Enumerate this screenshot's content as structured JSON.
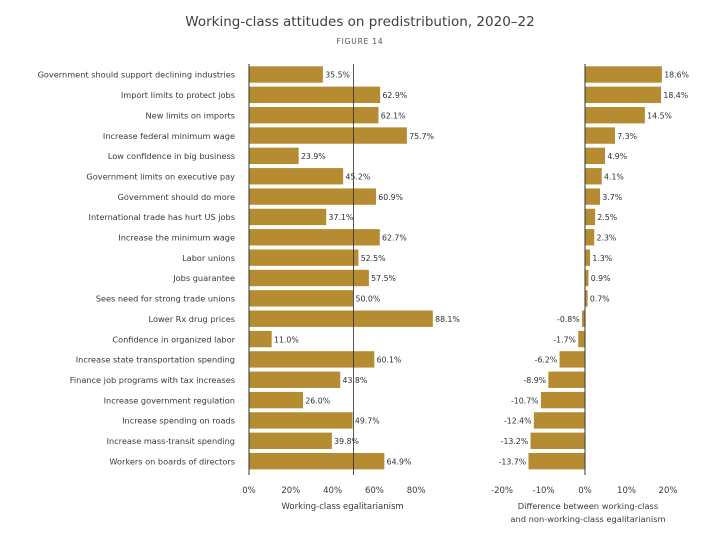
{
  "title": "Working-class attitudes on predistribution, 2020–22",
  "figure_label": "FIGURE 14",
  "colors": {
    "bar": "#b58c32",
    "bar_stroke": "#ffffff",
    "axis": "#333333",
    "grid": "#bfbfbf",
    "text": "#3a3a3a"
  },
  "chart_data": [
    {
      "type": "bar",
      "orientation": "horizontal",
      "xlabel": "Working-class egalitarianism",
      "xlim": [
        0,
        80
      ],
      "ticks": [
        0,
        20,
        40,
        60,
        80
      ],
      "tick_labels": [
        "0%",
        "20%",
        "40%",
        "60%",
        "80%"
      ],
      "reference_line": 50,
      "categories": [
        "Government should support declining industries",
        "Import limits to protect jobs",
        "New limits on imports",
        "Increase federal minimum wage",
        "Low confidence in big business",
        "Government limits on executive pay",
        "Government should do more",
        "International trade has hurt US jobs",
        "Increase the minimum wage",
        "Labor unions",
        "Jobs guarantee",
        "Sees need for strong trade unions",
        "Lower Rx drug prices",
        "Confidence in organized labor",
        "Increase state transportation spending",
        "Finance job programs with tax increases",
        "Increase government regulation",
        "Increase spending on roads",
        "Increase mass-transit spending",
        "Workers on boards of directors"
      ],
      "values": [
        35.5,
        62.9,
        62.1,
        75.7,
        23.9,
        45.2,
        60.9,
        37.1,
        62.7,
        52.5,
        57.5,
        50.0,
        88.1,
        11.0,
        60.1,
        43.8,
        26.0,
        49.7,
        39.8,
        64.9
      ],
      "value_labels": [
        "35.5%",
        "62.9%",
        "62.1%",
        "75.7%",
        "23.9%",
        "45.2%",
        "60.9%",
        "37.1%",
        "62.7%",
        "52.5%",
        "57.5%",
        "50.0%",
        "88.1%",
        "11.0%",
        "60.1%",
        "43.8%",
        "26.0%",
        "49.7%",
        "39.8%",
        "64.9%"
      ]
    },
    {
      "type": "bar",
      "orientation": "horizontal",
      "xlabel_lines": [
        "Difference between working-class",
        "and non-working-class egalitarianism"
      ],
      "xlim": [
        -20,
        20
      ],
      "ticks": [
        -20,
        -10,
        0,
        10,
        20
      ],
      "tick_labels": [
        "-20%",
        "-10%",
        "0%",
        "10%",
        "20%"
      ],
      "values": [
        18.6,
        18.4,
        14.5,
        7.3,
        4.9,
        4.1,
        3.7,
        2.5,
        2.3,
        1.3,
        0.9,
        0.7,
        -0.8,
        -1.7,
        -6.2,
        -8.9,
        -10.7,
        -12.4,
        -13.2,
        -13.7
      ],
      "value_labels": [
        "18.6%",
        "18.4%",
        "14.5%",
        "7.3%",
        "4.9%",
        "4.1%",
        "3.7%",
        "2.5%",
        "2.3%",
        "1.3%",
        "0.9%",
        "0.7%",
        "-0.8%",
        "-1.7%",
        "-6.2%",
        "-8.9%",
        "-10.7%",
        "-12.4%",
        "-13.2%",
        "-13.7%"
      ]
    }
  ]
}
